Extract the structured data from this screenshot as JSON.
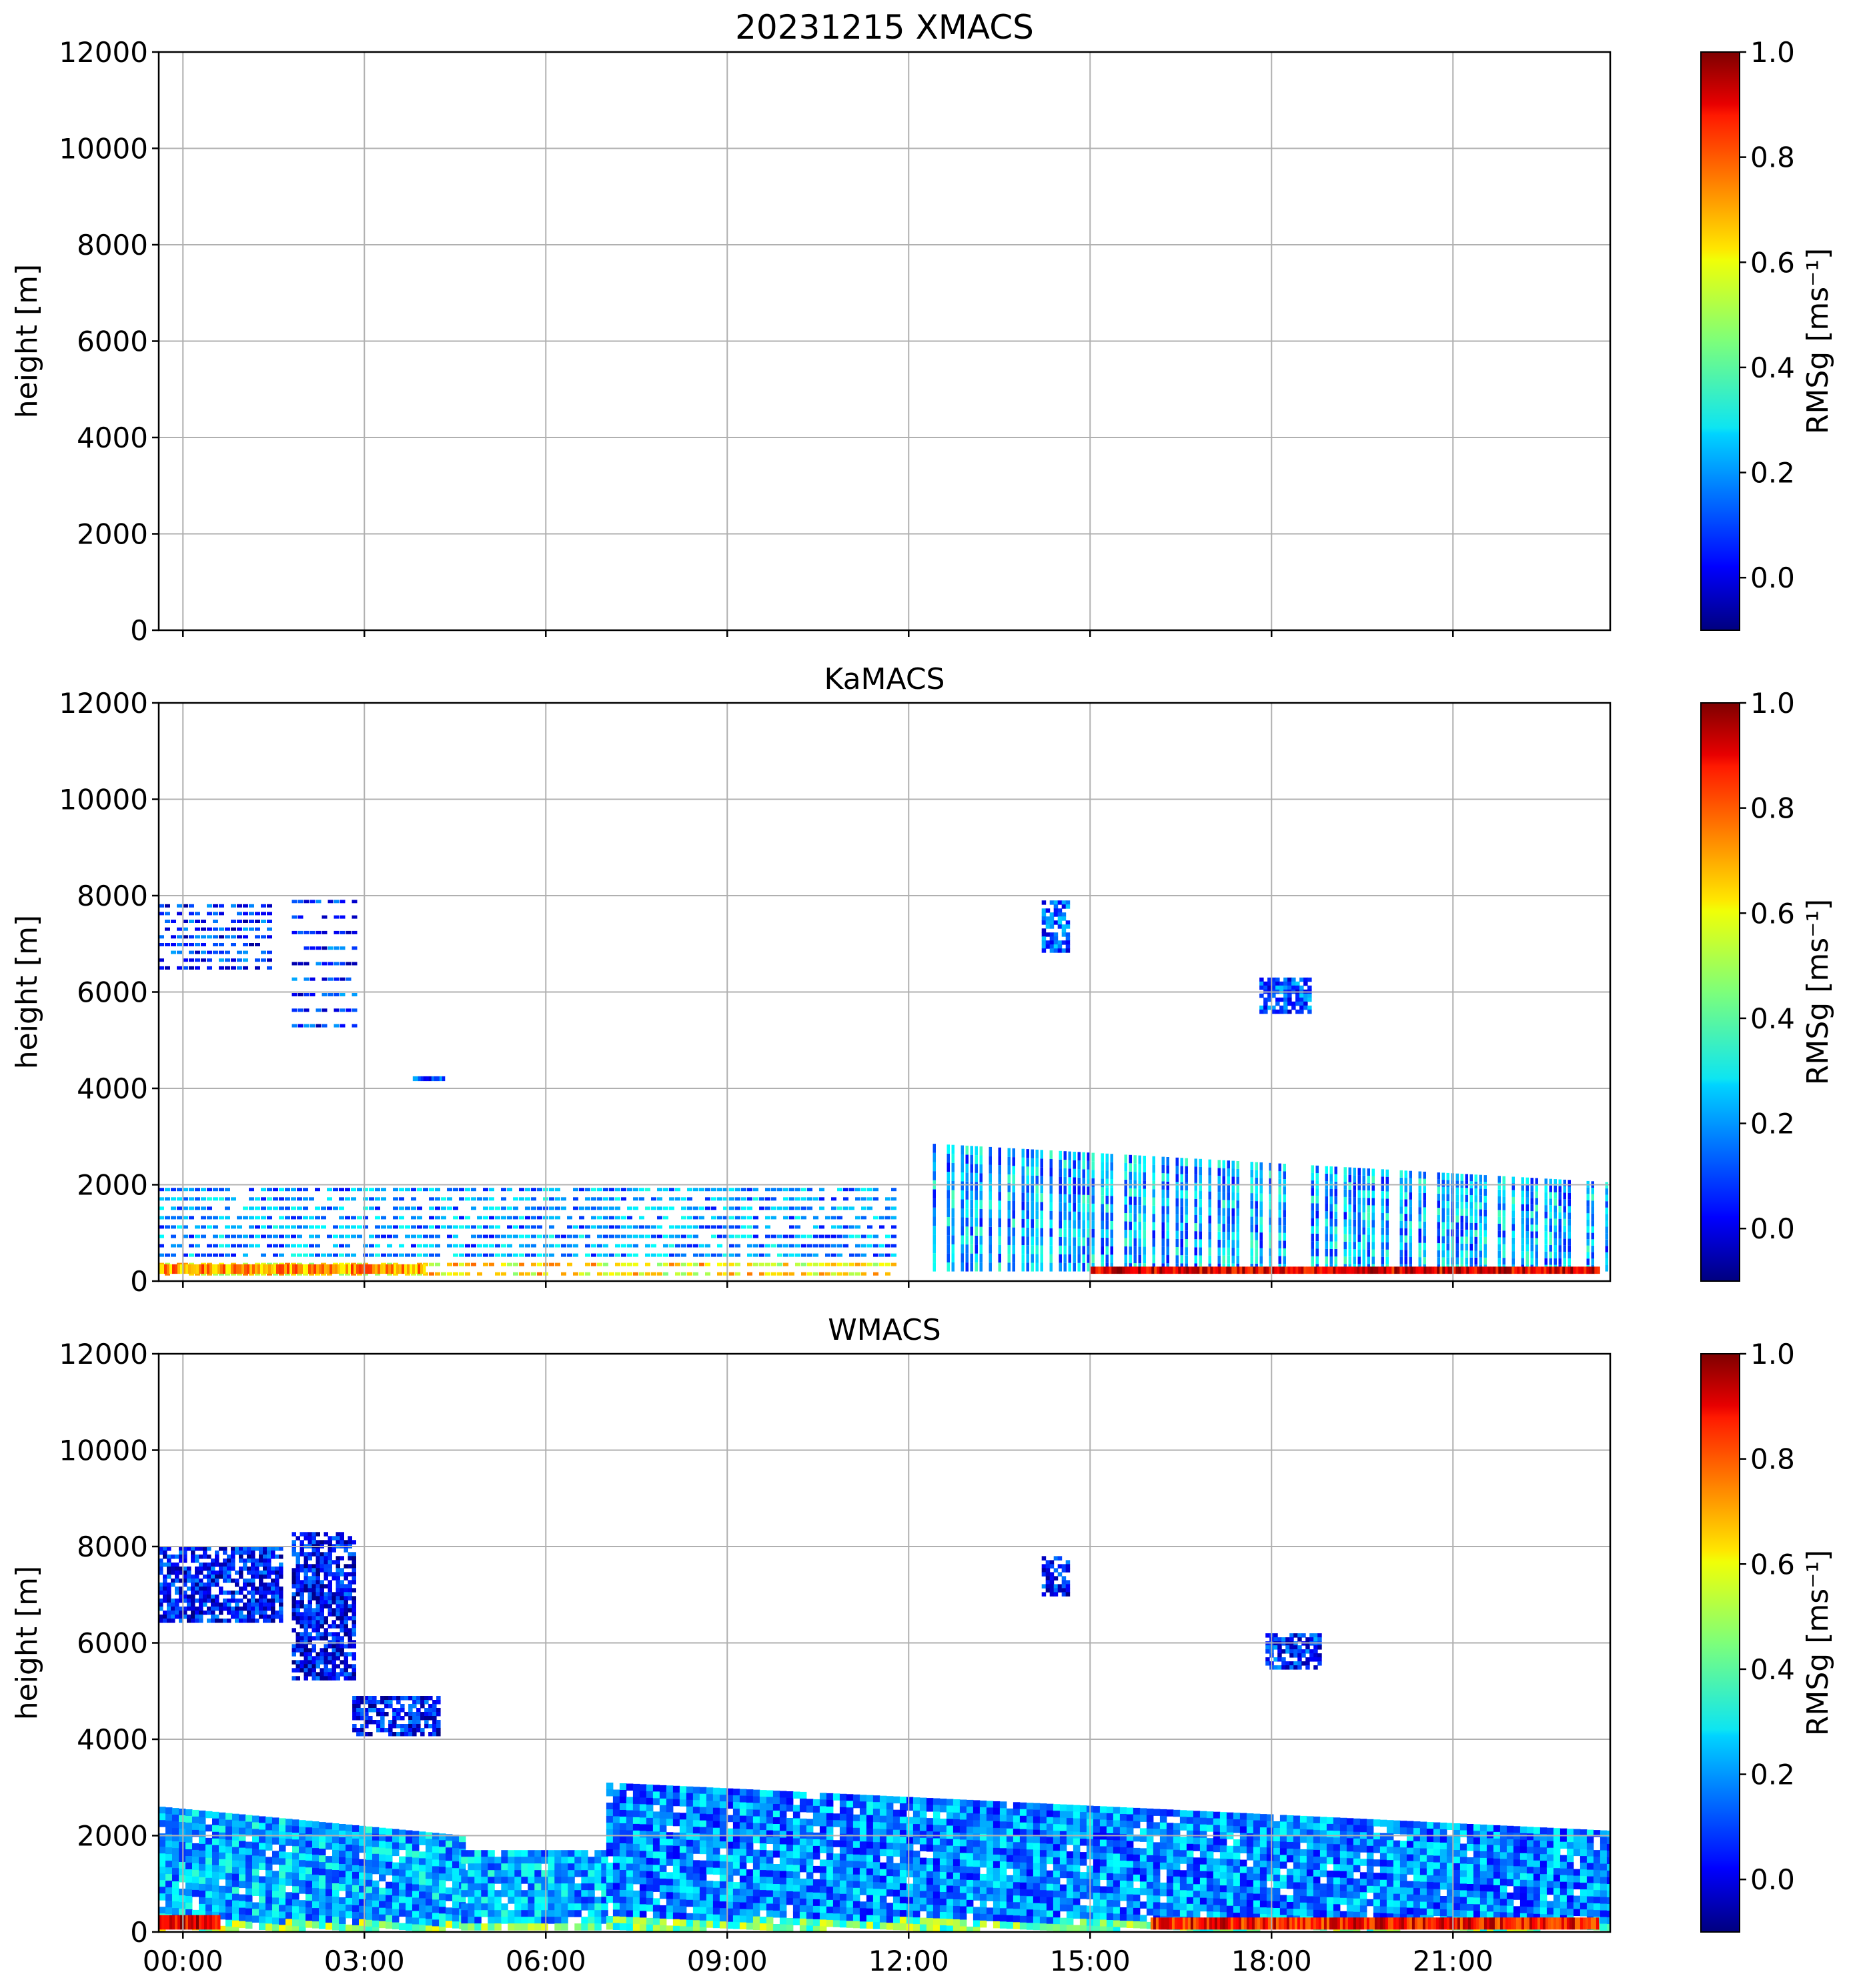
{
  "chart_data": [
    {
      "type": "heatmap",
      "instrument": "XMACS",
      "title": "20231215 XMACS",
      "ylabel": "height [m]",
      "y_ticks": [
        "0",
        "2000",
        "4000",
        "6000",
        "8000",
        "10000",
        "12000"
      ],
      "ylim": [
        0,
        12000
      ],
      "xlim_hours": [
        -0.4,
        23.6
      ],
      "x_ticks_hours": [
        0,
        3,
        6,
        9,
        12,
        15,
        18,
        21
      ],
      "x_tick_labels": [],
      "colorbar": {
        "label": "RMSg [ms⁻¹]",
        "ticks": [
          "0.0",
          "0.2",
          "0.4",
          "0.6",
          "0.8",
          "1.0"
        ],
        "range": [
          -0.1,
          1.0
        ],
        "colormap": "jet"
      },
      "grid": true,
      "features": []
    },
    {
      "type": "heatmap",
      "instrument": "KaMACS",
      "title": "KaMACS",
      "ylabel": "height [m]",
      "y_ticks": [
        "0",
        "2000",
        "4000",
        "6000",
        "8000",
        "10000",
        "12000"
      ],
      "ylim": [
        0,
        12000
      ],
      "xlim_hours": [
        -0.4,
        23.6
      ],
      "x_ticks_hours": [
        0,
        3,
        6,
        9,
        12,
        15,
        18,
        21
      ],
      "x_tick_labels": [],
      "colorbar": {
        "label": "RMSg [ms⁻¹]",
        "ticks": [
          "0.0",
          "0.2",
          "0.4",
          "0.6",
          "0.8",
          "1.0"
        ],
        "range": [
          -0.1,
          1.0
        ],
        "colormap": "jet"
      },
      "grid": true,
      "features": [
        {
          "name": "boundary-layer-stripes",
          "t0": -0.4,
          "t1": 11.8,
          "z0": 150,
          "z1": 1900,
          "v_mean": 0.2,
          "style": "striped"
        },
        {
          "name": "surface-layer-warm",
          "t0": -0.4,
          "t1": 4.0,
          "z0": 150,
          "z1": 350,
          "v_mean": 0.7,
          "style": "band"
        },
        {
          "name": "boundary-layer-columns",
          "t0": 12.4,
          "t1": 23.6,
          "z0": 200,
          "z1": 2850,
          "z1_end": 2050,
          "v_mean": 0.22,
          "style": "columns"
        },
        {
          "name": "surface-layer-red",
          "t0": 15.0,
          "t1": 23.4,
          "z0": 150,
          "z1": 300,
          "v_mean": 0.9,
          "style": "band"
        },
        {
          "name": "cirrus-stripes-1",
          "t0": -0.4,
          "t1": 1.4,
          "z0": 6500,
          "z1": 7950,
          "v_mean": 0.08,
          "style": "striped"
        },
        {
          "name": "cirrus-stripes-2",
          "t0": 1.8,
          "t1": 2.8,
          "z0": 5300,
          "z1": 8200,
          "v_mean": 0.08,
          "style": "striped"
        },
        {
          "name": "mid-level-streak",
          "t0": 3.8,
          "t1": 4.3,
          "z0": 4150,
          "z1": 4250,
          "v_mean": 0.1,
          "style": "band"
        },
        {
          "name": "cloud-patch-14h",
          "t0": 14.2,
          "t1": 14.6,
          "z0": 6900,
          "z1": 7900,
          "v_mean": 0.12,
          "style": "patch"
        },
        {
          "name": "cloud-patch-18h",
          "t0": 17.8,
          "t1": 18.6,
          "z0": 5600,
          "z1": 6300,
          "v_mean": 0.12,
          "style": "patch"
        }
      ]
    },
    {
      "type": "heatmap",
      "instrument": "WMACS",
      "title": "WMACS",
      "ylabel": "height [m]",
      "y_ticks": [
        "0",
        "2000",
        "4000",
        "6000",
        "8000",
        "10000",
        "12000"
      ],
      "ylim": [
        0,
        12000
      ],
      "xlim_hours": [
        -0.4,
        23.6
      ],
      "x_ticks_hours": [
        0,
        3,
        6,
        9,
        12,
        15,
        18,
        21
      ],
      "x_tick_labels": [
        "00:00",
        "03:00",
        "06:00",
        "09:00",
        "12:00",
        "15:00",
        "18:00",
        "21:00"
      ],
      "colorbar": {
        "label": "RMSg [ms⁻¹]",
        "ticks": [
          "0.0",
          "0.2",
          "0.4",
          "0.6",
          "0.8",
          "1.0"
        ],
        "range": [
          -0.1,
          1.0
        ],
        "colormap": "jet"
      },
      "grid": true,
      "features": [
        {
          "name": "boundary-layer-1",
          "t0": -0.4,
          "t1": 4.6,
          "z0": 100,
          "z1": 2600,
          "z1_end": 2000,
          "v_mean": 0.22,
          "style": "blob"
        },
        {
          "name": "boundary-layer-2",
          "t0": 4.6,
          "t1": 7.0,
          "z0": 100,
          "z1": 1700,
          "v_mean": 0.22,
          "style": "blob"
        },
        {
          "name": "boundary-layer-3",
          "t0": 7.0,
          "t1": 23.6,
          "z0": 100,
          "z1": 3100,
          "z1_end": 2100,
          "v_mean": 0.18,
          "style": "blob"
        },
        {
          "name": "surface-layer-red-1",
          "t0": -0.4,
          "t1": 0.6,
          "z0": 50,
          "z1": 350,
          "v_mean": 0.9,
          "style": "band"
        },
        {
          "name": "surface-layer-red-2",
          "t0": 16.0,
          "t1": 23.4,
          "z0": 50,
          "z1": 300,
          "v_mean": 0.85,
          "style": "band"
        },
        {
          "name": "cirrus-1",
          "t0": -0.4,
          "t1": 1.6,
          "z0": 6500,
          "z1": 8000,
          "v_mean": 0.05,
          "style": "patch"
        },
        {
          "name": "cirrus-2",
          "t0": 1.8,
          "t1": 2.8,
          "z0": 5300,
          "z1": 8300,
          "v_mean": 0.03,
          "style": "patch"
        },
        {
          "name": "mid-level-trail",
          "t0": 2.8,
          "t1": 4.2,
          "z0": 4100,
          "z1": 4900,
          "v_mean": 0.05,
          "style": "patch"
        },
        {
          "name": "cloud-patch-14h",
          "t0": 14.2,
          "t1": 14.6,
          "z0": 7000,
          "z1": 7800,
          "v_mean": 0.05,
          "style": "patch"
        },
        {
          "name": "cloud-patch-18h",
          "t0": 17.9,
          "t1": 18.8,
          "z0": 5500,
          "z1": 6200,
          "v_mean": 0.08,
          "style": "patch"
        }
      ]
    }
  ]
}
